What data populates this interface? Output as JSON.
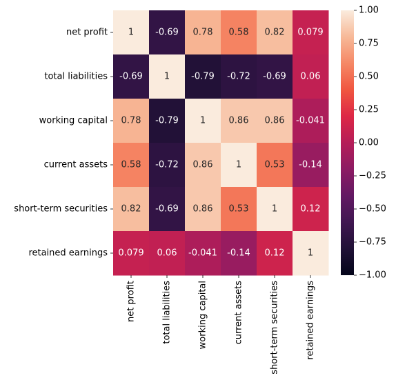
{
  "chart_data": {
    "type": "heatmap",
    "title": "",
    "xlabel": "",
    "ylabel": "",
    "row_labels": [
      "net profit",
      "total liabilities",
      "working capital",
      "current assets",
      "short-term securities",
      "retained earnings"
    ],
    "col_labels": [
      "net profit",
      "total liabilities",
      "working capital",
      "current assets",
      "short-term securities",
      "retained earnings"
    ],
    "values": [
      [
        1,
        -0.69,
        0.78,
        0.58,
        0.82,
        0.079
      ],
      [
        -0.69,
        1,
        -0.79,
        -0.72,
        -0.69,
        0.06
      ],
      [
        0.78,
        -0.79,
        1,
        0.86,
        0.86,
        -0.041
      ],
      [
        0.58,
        -0.72,
        0.86,
        1,
        0.53,
        -0.14
      ],
      [
        0.82,
        -0.69,
        0.86,
        0.53,
        1,
        0.12
      ],
      [
        0.079,
        0.06,
        -0.041,
        -0.14,
        0.12,
        1
      ]
    ],
    "value_labels": [
      [
        "1",
        "-0.69",
        "0.78",
        "0.58",
        "0.82",
        "0.079"
      ],
      [
        "-0.69",
        "1",
        "-0.79",
        "-0.72",
        "-0.69",
        "0.06"
      ],
      [
        "0.78",
        "-0.79",
        "1",
        "0.86",
        "0.86",
        "-0.041"
      ],
      [
        "0.58",
        "-0.72",
        "0.86",
        "1",
        "0.53",
        "-0.14"
      ],
      [
        "0.82",
        "-0.69",
        "0.86",
        "0.53",
        "1",
        "0.12"
      ],
      [
        "0.079",
        "0.06",
        "-0.041",
        "-0.14",
        "0.12",
        "1"
      ]
    ],
    "colorbar": {
      "range": [
        -1,
        1
      ],
      "ticks": [
        -1,
        -0.75,
        -0.5,
        -0.25,
        0,
        0.25,
        0.5,
        0.75,
        1
      ],
      "tick_labels": [
        "−1.00",
        "−0.75",
        "−0.50",
        "−0.25",
        "0.00",
        "0.25",
        "0.50",
        "0.75",
        "1.00"
      ],
      "colormap": "rocket",
      "placement": "right"
    },
    "annotations": true,
    "grid": false
  }
}
